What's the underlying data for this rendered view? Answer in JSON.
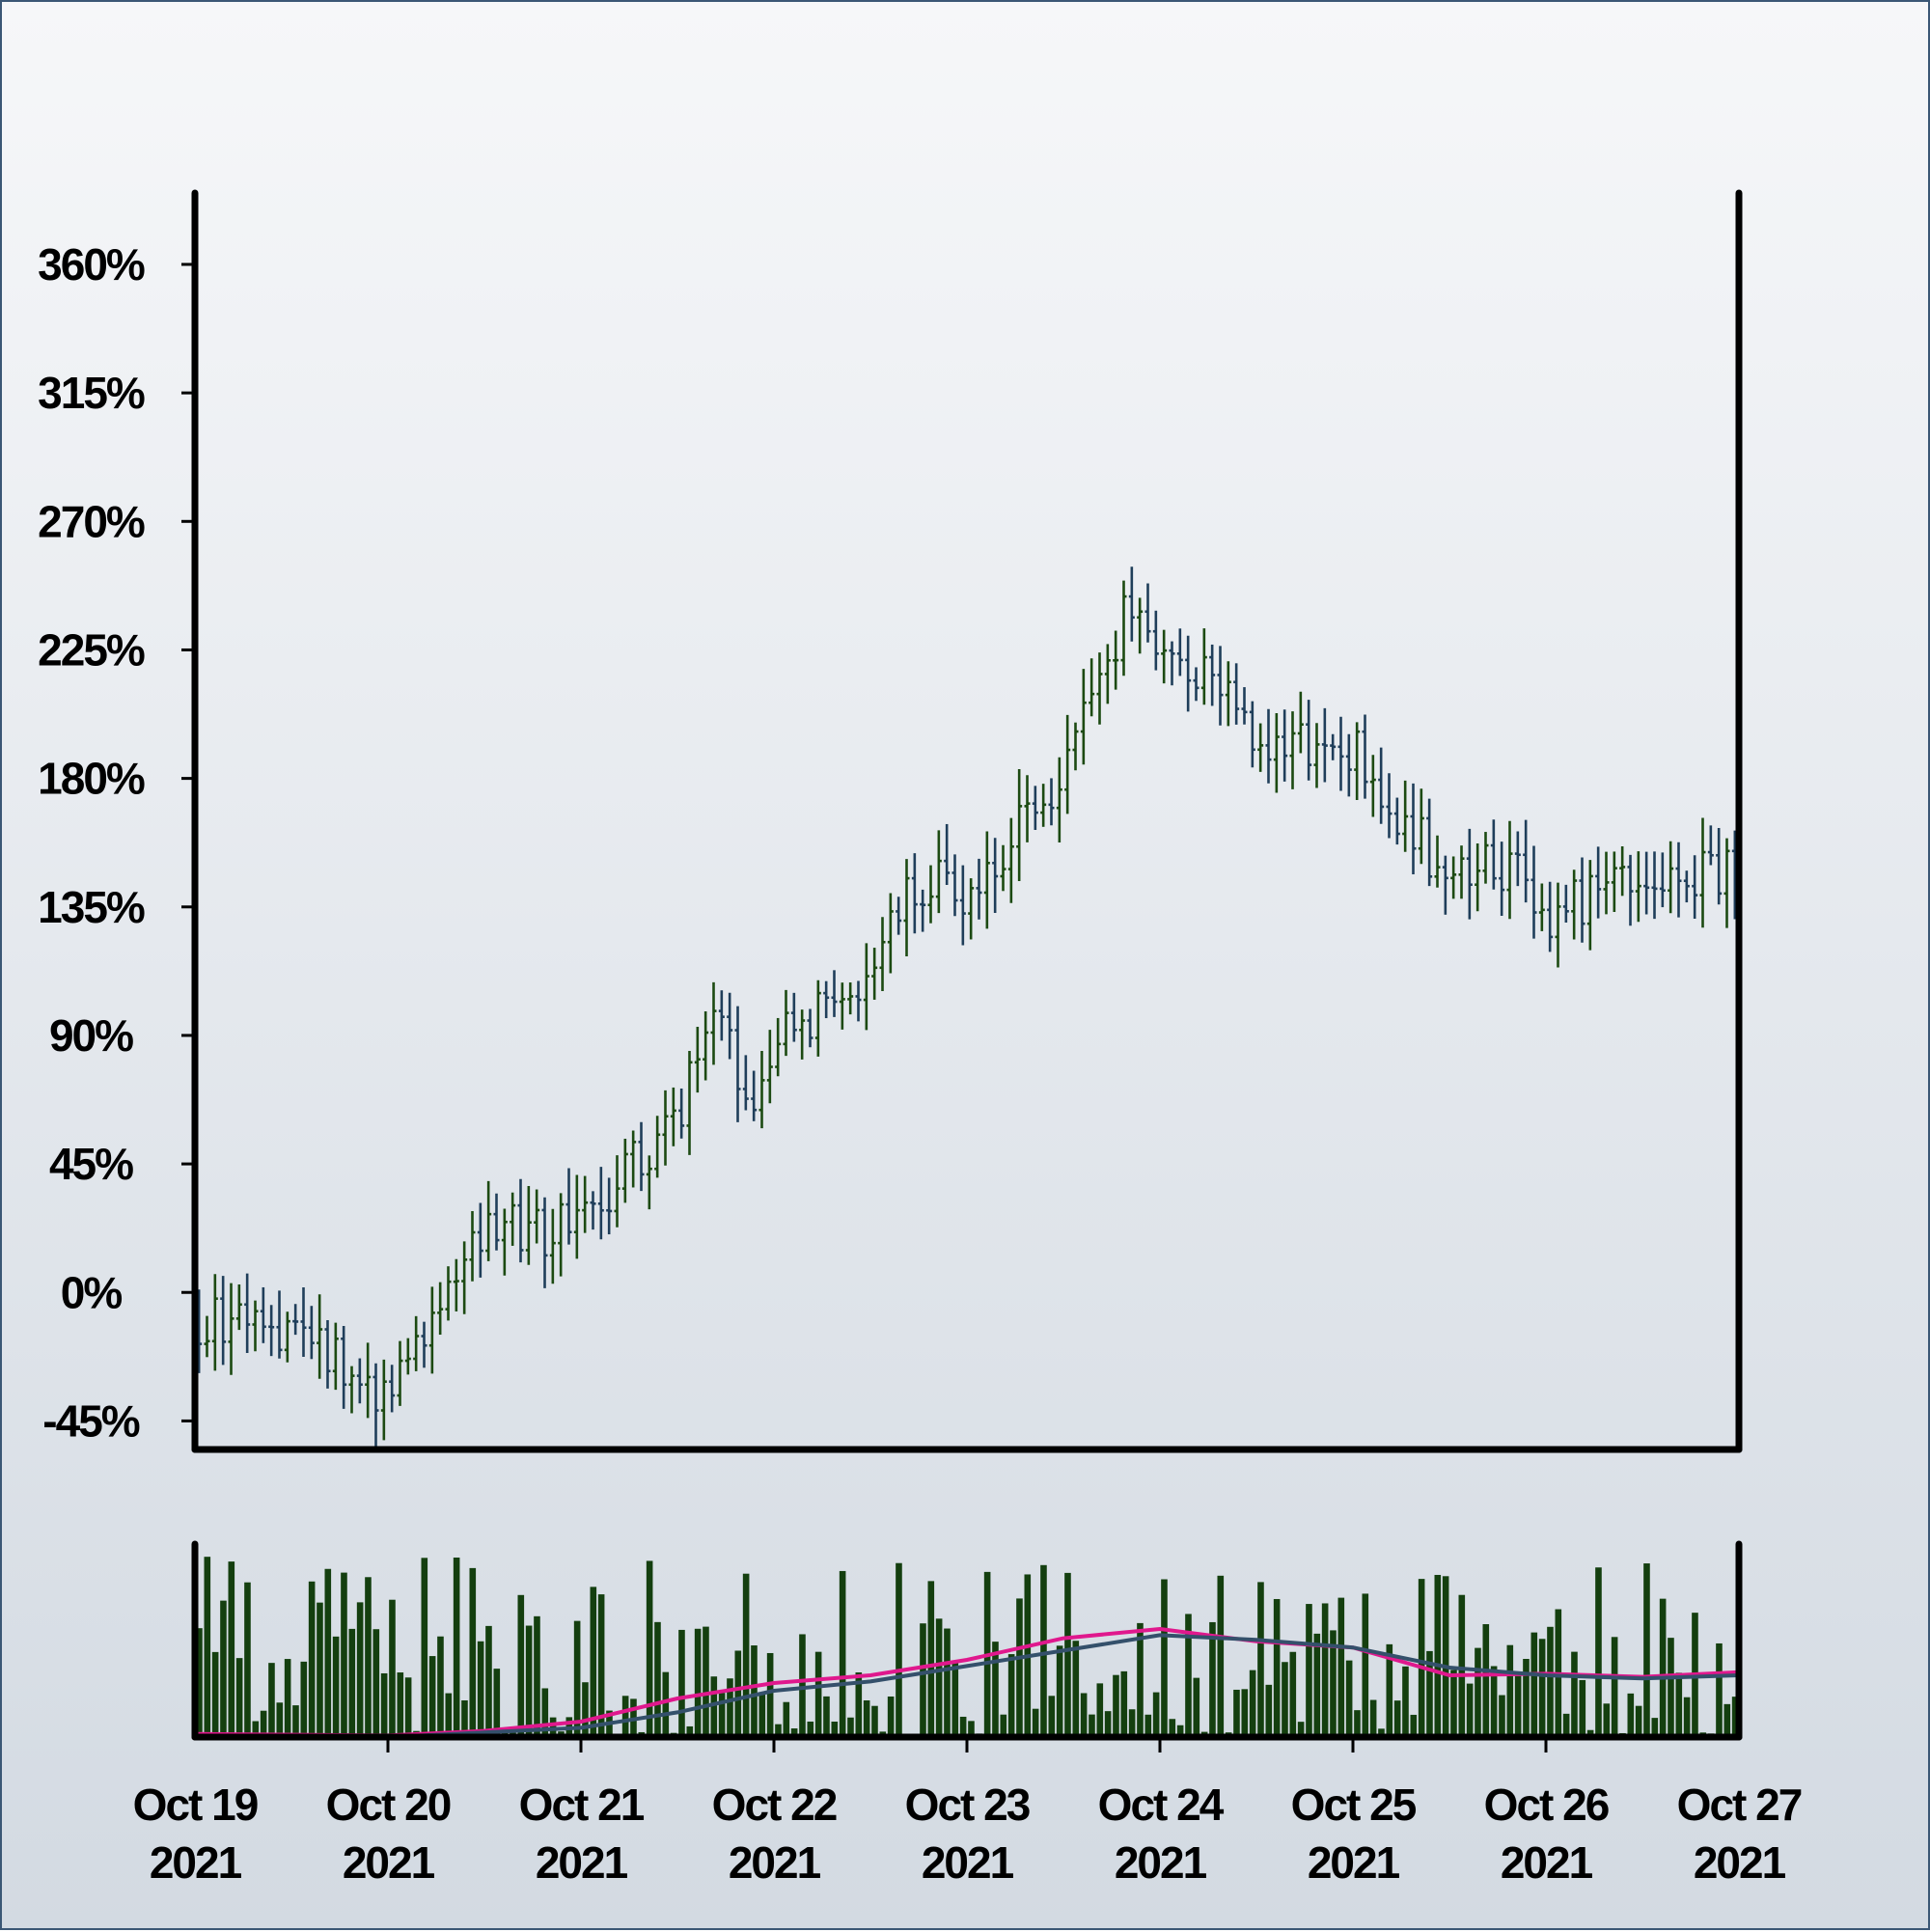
{
  "chart_data": {
    "type": "ohlc",
    "title": "",
    "xlabel": "",
    "ylabel": "",
    "x_range": [
      "2021-10-19",
      "2021-10-27"
    ],
    "x_ticks": [
      {
        "date": "2021-10-19",
        "line1": "Oct 19",
        "line2": "2021"
      },
      {
        "date": "2021-10-20",
        "line1": "Oct 20",
        "line2": "2021"
      },
      {
        "date": "2021-10-21",
        "line1": "Oct 21",
        "line2": "2021"
      },
      {
        "date": "2021-10-22",
        "line1": "Oct 22",
        "line2": "2021"
      },
      {
        "date": "2021-10-23",
        "line1": "Oct 23",
        "line2": "2021"
      },
      {
        "date": "2021-10-24",
        "line1": "Oct 24",
        "line2": "2021"
      },
      {
        "date": "2021-10-25",
        "line1": "Oct 25",
        "line2": "2021"
      },
      {
        "date": "2021-10-26",
        "line1": "Oct 26",
        "line2": "2021"
      },
      {
        "date": "2021-10-27",
        "line1": "Oct 27",
        "line2": "2021"
      }
    ],
    "ylim": [
      -55,
      385
    ],
    "y_ticks": [
      {
        "value": 360,
        "label": "360%"
      },
      {
        "value": 315,
        "label": "315%"
      },
      {
        "value": 270,
        "label": "270%"
      },
      {
        "value": 225,
        "label": "225%"
      },
      {
        "value": 180,
        "label": "180%"
      },
      {
        "value": 135,
        "label": "135%"
      },
      {
        "value": 90,
        "label": "90%"
      },
      {
        "value": 45,
        "label": "45%"
      },
      {
        "value": 0,
        "label": "0%"
      },
      {
        "value": -45,
        "label": "-45%"
      }
    ],
    "grid": false,
    "legend": "none",
    "colors": {
      "up": "#1c4a12",
      "down": "#1f3e5a",
      "volume": "#143f0f",
      "ma_short": "#e0188d",
      "ma_long": "#34506b",
      "axis": "#000000"
    },
    "price_path": [
      {
        "date": "2021-10-19",
        "value": -10
      },
      {
        "date": "2021-10-19T12:00",
        "value": -15
      },
      {
        "date": "2021-10-20",
        "value": -35
      },
      {
        "date": "2021-10-20T12:00",
        "value": 25
      },
      {
        "date": "2021-10-20T18:00",
        "value": 20
      },
      {
        "date": "2021-10-21",
        "value": 25
      },
      {
        "date": "2021-10-21T12:00",
        "value": 60
      },
      {
        "date": "2021-10-21T16:00",
        "value": 105
      },
      {
        "date": "2021-10-21T22:00",
        "value": 60
      },
      {
        "date": "2021-10-22",
        "value": 90
      },
      {
        "date": "2021-10-22T12:00",
        "value": 110
      },
      {
        "date": "2021-10-22T18:00",
        "value": 145
      },
      {
        "date": "2021-10-23",
        "value": 140
      },
      {
        "date": "2021-10-23T12:00",
        "value": 180
      },
      {
        "date": "2021-10-23T20:00",
        "value": 240
      },
      {
        "date": "2021-10-24",
        "value": 230
      },
      {
        "date": "2021-10-24T12:00",
        "value": 195
      },
      {
        "date": "2021-10-25",
        "value": 190
      },
      {
        "date": "2021-10-25T12:00",
        "value": 145
      },
      {
        "date": "2021-10-25T20:00",
        "value": 150
      },
      {
        "date": "2021-10-26",
        "value": 130
      },
      {
        "date": "2021-10-26T12:00",
        "value": 150
      },
      {
        "date": "2021-10-27",
        "value": 145
      }
    ],
    "volume_ma_short": [
      {
        "date": "2021-10-19",
        "value": 2
      },
      {
        "date": "2021-10-20",
        "value": 1
      },
      {
        "date": "2021-10-20T12:00",
        "value": 4
      },
      {
        "date": "2021-10-21",
        "value": 10
      },
      {
        "date": "2021-10-21T12:00",
        "value": 25
      },
      {
        "date": "2021-10-22",
        "value": 35
      },
      {
        "date": "2021-10-22T12:00",
        "value": 40
      },
      {
        "date": "2021-10-23",
        "value": 50
      },
      {
        "date": "2021-10-23T12:00",
        "value": 64
      },
      {
        "date": "2021-10-24",
        "value": 70
      },
      {
        "date": "2021-10-24T12:00",
        "value": 62
      },
      {
        "date": "2021-10-25",
        "value": 58
      },
      {
        "date": "2021-10-25T12:00",
        "value": 40
      },
      {
        "date": "2021-10-26",
        "value": 41
      },
      {
        "date": "2021-10-26T12:00",
        "value": 39
      },
      {
        "date": "2021-10-27",
        "value": 42
      }
    ],
    "volume_ma_long": [
      {
        "date": "2021-10-20",
        "value": 0
      },
      {
        "date": "2021-10-21",
        "value": 6
      },
      {
        "date": "2021-10-21T12:00",
        "value": 16
      },
      {
        "date": "2021-10-22",
        "value": 30
      },
      {
        "date": "2021-10-22T12:00",
        "value": 36
      },
      {
        "date": "2021-10-23",
        "value": 46
      },
      {
        "date": "2021-10-23T12:00",
        "value": 56
      },
      {
        "date": "2021-10-24",
        "value": 66
      },
      {
        "date": "2021-10-24T12:00",
        "value": 63
      },
      {
        "date": "2021-10-25",
        "value": 58
      },
      {
        "date": "2021-10-25T12:00",
        "value": 45
      },
      {
        "date": "2021-10-26",
        "value": 40
      },
      {
        "date": "2021-10-26T12:00",
        "value": 38
      },
      {
        "date": "2021-10-27",
        "value": 40
      }
    ],
    "volume_max": 125
  }
}
